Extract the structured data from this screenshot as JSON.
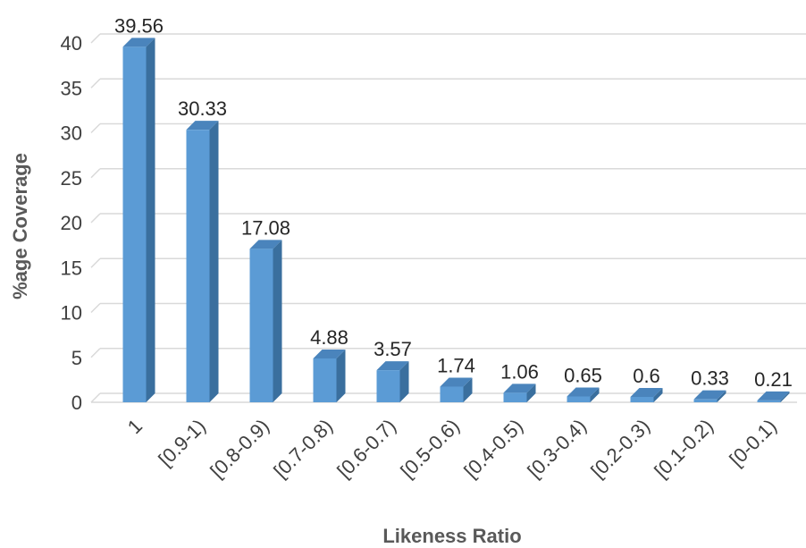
{
  "chart_data": {
    "type": "bar",
    "title": "",
    "xlabel": "Likeness Ratio",
    "ylabel": "%age Coverage",
    "categories": [
      "1",
      "[0.9-1)",
      "[0.8-0.9)",
      "[0.7-0.8)",
      "[0.6-0.7)",
      "[0.5-0.6)",
      "[0.4-0.5)",
      "[0.3-0.4)",
      "[0.2-0.3)",
      "[0.1-0.2)",
      "[0-0.1)"
    ],
    "values": [
      39.56,
      30.33,
      17.08,
      4.88,
      3.57,
      1.74,
      1.06,
      0.65,
      0.6,
      0.33,
      0.21
    ],
    "data_labels": [
      "39.56",
      "30.33",
      "17.08",
      "4.88",
      "3.57",
      "1.74",
      "1.06",
      "0.65",
      "0.6",
      "0.33",
      "0.21"
    ],
    "ylim": [
      0,
      40
    ],
    "yticks": [
      "0",
      "5",
      "10",
      "15",
      "20",
      "25",
      "30",
      "35",
      "40"
    ],
    "grid": true,
    "bar_style": "3d-column",
    "colors": {
      "bar_front": "#5B9BD5",
      "bar_side": "#3A6F9E",
      "bar_top": "#4A84BC",
      "grid": "#D9D9D9"
    }
  }
}
